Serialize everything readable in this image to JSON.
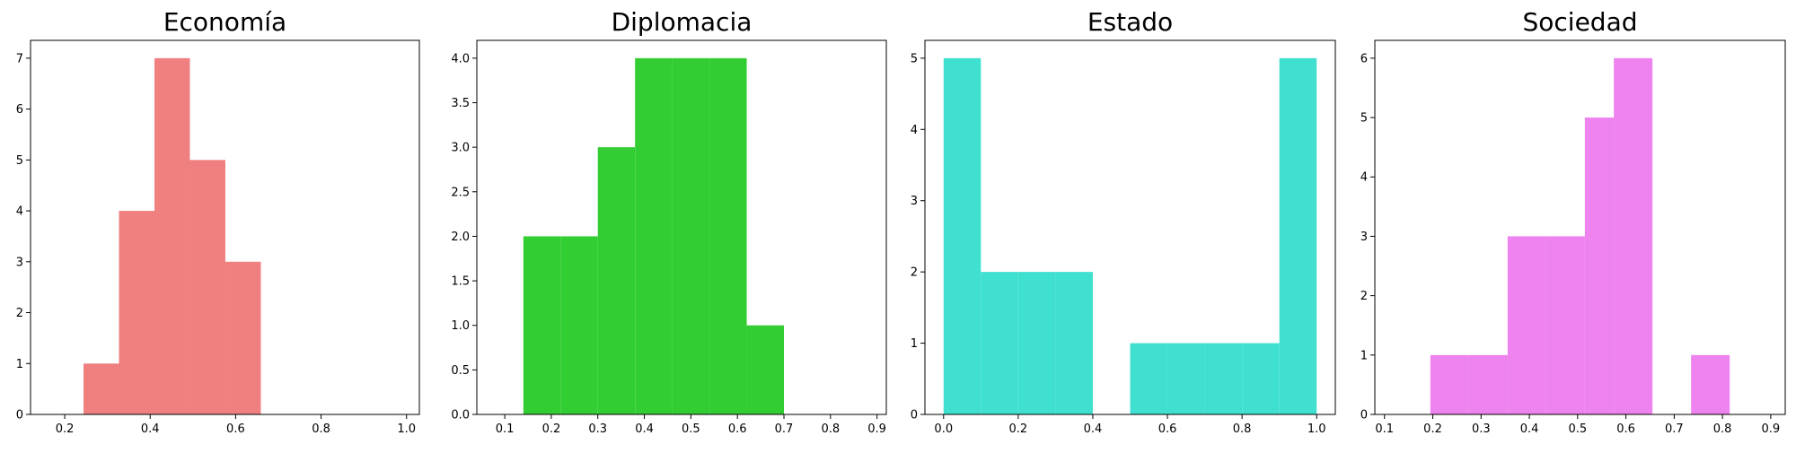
{
  "chart_data": [
    {
      "type": "bar",
      "title": "Economía",
      "color": "#f08080",
      "xlim": [
        0.12,
        1.03
      ],
      "ylim": [
        0,
        7.35
      ],
      "xticks": [
        "0.2",
        "0.4",
        "0.6",
        "0.8",
        "1.0"
      ],
      "xtick_values": [
        0.2,
        0.4,
        0.6,
        0.8,
        1.0
      ],
      "yticks": [
        "0",
        "1",
        "2",
        "3",
        "4",
        "5",
        "6",
        "7"
      ],
      "ytick_values": [
        0,
        1,
        2,
        3,
        4,
        5,
        6,
        7
      ],
      "bins": [
        {
          "x0": 0.244,
          "x1": 0.327,
          "value": 1
        },
        {
          "x0": 0.327,
          "x1": 0.41,
          "value": 4
        },
        {
          "x0": 0.41,
          "x1": 0.493,
          "value": 7
        },
        {
          "x0": 0.493,
          "x1": 0.576,
          "value": 5
        },
        {
          "x0": 0.576,
          "x1": 0.659,
          "value": 3
        }
      ]
    },
    {
      "type": "bar",
      "title": "Diplomacia",
      "color": "#32cd32",
      "xlim": [
        0.04,
        0.92
      ],
      "ylim": [
        0,
        4.2
      ],
      "xticks": [
        "0.1",
        "0.2",
        "0.3",
        "0.4",
        "0.5",
        "0.6",
        "0.7",
        "0.8",
        "0.9"
      ],
      "xtick_values": [
        0.1,
        0.2,
        0.3,
        0.4,
        0.5,
        0.6,
        0.7,
        0.8,
        0.9
      ],
      "yticks": [
        "0.0",
        "0.5",
        "1.0",
        "1.5",
        "2.0",
        "2.5",
        "3.0",
        "3.5",
        "4.0"
      ],
      "ytick_values": [
        0,
        0.5,
        1,
        1.5,
        2,
        2.5,
        3,
        3.5,
        4
      ],
      "bins": [
        {
          "x0": 0.14,
          "x1": 0.22,
          "value": 2
        },
        {
          "x0": 0.22,
          "x1": 0.3,
          "value": 2
        },
        {
          "x0": 0.3,
          "x1": 0.38,
          "value": 3
        },
        {
          "x0": 0.38,
          "x1": 0.46,
          "value": 4
        },
        {
          "x0": 0.46,
          "x1": 0.54,
          "value": 4
        },
        {
          "x0": 0.54,
          "x1": 0.62,
          "value": 4
        },
        {
          "x0": 0.62,
          "x1": 0.7,
          "value": 1
        }
      ]
    },
    {
      "type": "bar",
      "title": "Estado",
      "color": "#40e0d0",
      "xlim": [
        -0.05,
        1.05
      ],
      "ylim": [
        0,
        5.25
      ],
      "xticks": [
        "0.0",
        "0.2",
        "0.4",
        "0.6",
        "0.8",
        "1.0"
      ],
      "xtick_values": [
        0,
        0.2,
        0.4,
        0.6,
        0.8,
        1.0
      ],
      "yticks": [
        "0",
        "1",
        "2",
        "3",
        "4",
        "5"
      ],
      "ytick_values": [
        0,
        1,
        2,
        3,
        4,
        5
      ],
      "bins": [
        {
          "x0": 0.0,
          "x1": 0.1,
          "value": 5
        },
        {
          "x0": 0.1,
          "x1": 0.2,
          "value": 2
        },
        {
          "x0": 0.2,
          "x1": 0.3,
          "value": 2
        },
        {
          "x0": 0.3,
          "x1": 0.4,
          "value": 2
        },
        {
          "x0": 0.4,
          "x1": 0.5,
          "value": 0
        },
        {
          "x0": 0.5,
          "x1": 0.6,
          "value": 1
        },
        {
          "x0": 0.6,
          "x1": 0.7,
          "value": 1
        },
        {
          "x0": 0.7,
          "x1": 0.8,
          "value": 1
        },
        {
          "x0": 0.8,
          "x1": 0.9,
          "value": 1
        },
        {
          "x0": 0.9,
          "x1": 1.0,
          "value": 5
        }
      ]
    },
    {
      "type": "bar",
      "title": "Sociedad",
      "color": "#ee82ee",
      "xlim": [
        0.08,
        0.93
      ],
      "ylim": [
        0,
        6.3
      ],
      "xticks": [
        "0.1",
        "0.2",
        "0.3",
        "0.4",
        "0.5",
        "0.6",
        "0.7",
        "0.8",
        "0.9"
      ],
      "xtick_values": [
        0.1,
        0.2,
        0.3,
        0.4,
        0.5,
        0.6,
        0.7,
        0.8,
        0.9
      ],
      "yticks": [
        "0",
        "1",
        "2",
        "3",
        "4",
        "5",
        "6"
      ],
      "ytick_values": [
        0,
        1,
        2,
        3,
        4,
        5,
        6
      ],
      "bins": [
        {
          "x0": 0.195,
          "x1": 0.275,
          "value": 1
        },
        {
          "x0": 0.275,
          "x1": 0.355,
          "value": 1
        },
        {
          "x0": 0.355,
          "x1": 0.435,
          "value": 3
        },
        {
          "x0": 0.435,
          "x1": 0.515,
          "value": 3
        },
        {
          "x0": 0.515,
          "x1": 0.575,
          "value": 5
        },
        {
          "x0": 0.575,
          "x1": 0.655,
          "value": 6
        },
        {
          "x0": 0.655,
          "x1": 0.735,
          "value": 0
        },
        {
          "x0": 0.735,
          "x1": 0.815,
          "value": 1
        }
      ]
    }
  ]
}
